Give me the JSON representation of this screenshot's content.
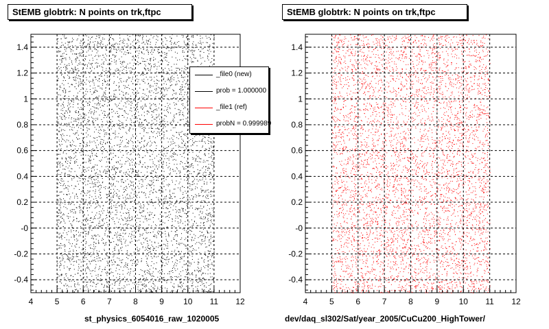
{
  "chart_data": [
    {
      "type": "scatter",
      "title": "StEMB globtrk: N points on trk,ftpc",
      "xlabel": "st_physics_6054016_raw_1020005",
      "ylabel": "",
      "xlim": [
        4,
        12
      ],
      "ylim": [
        -0.5,
        1.5
      ],
      "x_ticks": [
        "4",
        "5",
        "6",
        "7",
        "8",
        "9",
        "10",
        "11",
        "12"
      ],
      "y_ticks": [
        "-0.4",
        "-0.2",
        "-0",
        "0.2",
        "0.4",
        "0.6",
        "0.8",
        "1",
        "1.2",
        "1.4"
      ],
      "x_data_range": [
        5,
        11
      ],
      "y_data_range": [
        -0.5,
        1.5
      ],
      "marker_color": "#000000",
      "grid": true,
      "legend_position": "top-right",
      "legend": [
        {
          "label": "_file0 (new)",
          "color": "#000000"
        },
        {
          "label": "prob = 1.000000",
          "color": "#000000"
        },
        {
          "label": "_file1 (ref)",
          "color": "#ff0000"
        },
        {
          "label": "probN = 0.999989",
          "color": "#ff0000"
        }
      ]
    },
    {
      "type": "scatter",
      "title": "StEMB globtrk: N points on trk,ftpc",
      "xlabel": "dev/daq_sl302/Sat/year_2005/CuCu200_HighTower/",
      "ylabel": "",
      "xlim": [
        4,
        12
      ],
      "ylim": [
        -0.5,
        1.5
      ],
      "x_ticks": [
        "4",
        "5",
        "6",
        "7",
        "8",
        "9",
        "10",
        "11",
        "12"
      ],
      "y_ticks": [
        "-0.4",
        "-0.2",
        "-0",
        "0.2",
        "0.4",
        "0.6",
        "0.8",
        "1",
        "1.2",
        "1.4"
      ],
      "x_data_range": [
        5,
        11
      ],
      "y_data_range": [
        -0.5,
        1.5
      ],
      "marker_color": "#ff0000",
      "grid": true
    }
  ]
}
